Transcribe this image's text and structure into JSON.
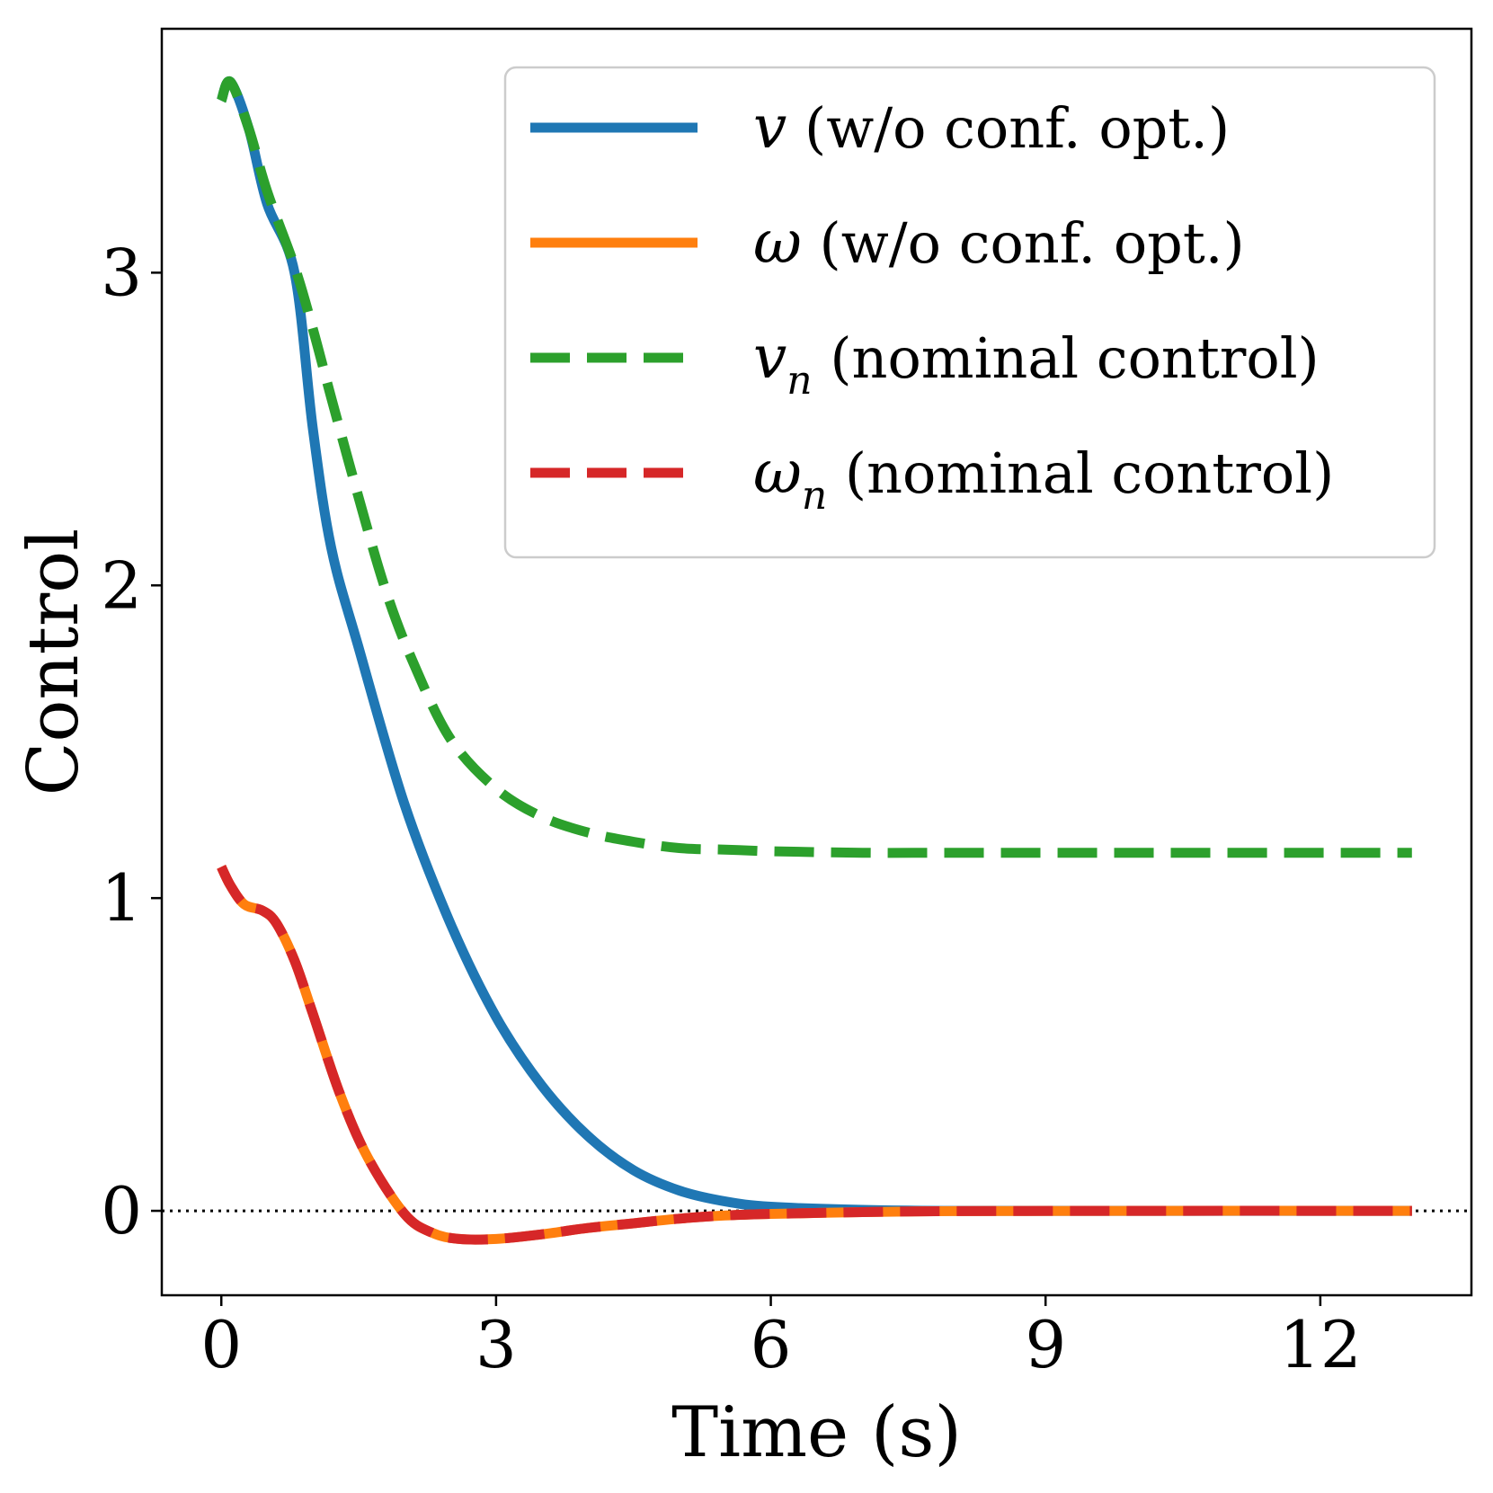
{
  "chart_data": {
    "type": "line",
    "title": "",
    "xlabel": "Time (s)",
    "ylabel": "Control",
    "xlim": [
      -0.65,
      13.65
    ],
    "ylim": [
      -0.27,
      3.78
    ],
    "xticks": [
      0,
      3,
      6,
      9,
      12
    ],
    "xtick_labels": [
      "0",
      "3",
      "6",
      "9",
      "12"
    ],
    "yticks": [
      0,
      1,
      2,
      3
    ],
    "ytick_labels": [
      "0",
      "1",
      "2",
      "3"
    ],
    "grid": false,
    "legend_position": "top-right",
    "reference_line": {
      "y": 0,
      "style": "dotted",
      "color": "#000000"
    },
    "series": [
      {
        "name": "v (w/o conf. opt.)",
        "symbol": "v",
        "subscript": "",
        "text": " (w/o conf. opt.)",
        "color": "#1f77b4",
        "style": "solid",
        "x": [
          0,
          0.1,
          0.3,
          0.5,
          0.8,
          1.0,
          1.2,
          1.5,
          2.0,
          2.5,
          3.0,
          3.5,
          4.0,
          4.5,
          5.0,
          5.5,
          6.0,
          7.0,
          8.0,
          10.0,
          13.0
        ],
        "y": [
          3.55,
          3.61,
          3.46,
          3.22,
          3.0,
          2.5,
          2.12,
          1.8,
          1.3,
          0.92,
          0.62,
          0.4,
          0.24,
          0.13,
          0.065,
          0.03,
          0.013,
          0.003,
          0.0,
          0.0,
          0.0
        ]
      },
      {
        "name": "ω (w/o conf. opt.)",
        "symbol": "ω",
        "subscript": "",
        "text": " (w/o conf. opt.)",
        "color": "#ff7f0e",
        "style": "solid",
        "x": [
          0,
          0.1,
          0.25,
          0.45,
          0.6,
          0.8,
          1.0,
          1.3,
          1.6,
          2.0,
          2.3,
          2.6,
          3.0,
          3.5,
          4.0,
          4.5,
          5.0,
          5.5,
          6.0,
          7.0,
          8.0,
          10.0,
          13.0
        ],
        "y": [
          1.1,
          1.04,
          0.98,
          0.96,
          0.92,
          0.8,
          0.63,
          0.37,
          0.17,
          -0.01,
          -0.07,
          -0.09,
          -0.09,
          -0.075,
          -0.055,
          -0.04,
          -0.025,
          -0.015,
          -0.01,
          -0.004,
          -0.001,
          0.0,
          0.0
        ]
      },
      {
        "name": "v_n (nominal control)",
        "symbol": "v",
        "subscript": "n",
        "text": " (nominal control)",
        "color": "#2ca02c",
        "style": "dashed",
        "x": [
          0,
          0.1,
          0.3,
          0.5,
          0.8,
          1.0,
          1.2,
          1.5,
          1.8,
          2.1,
          2.5,
          3.0,
          3.5,
          4.0,
          4.5,
          5.0,
          5.5,
          6.0,
          7.0,
          8.0,
          10.0,
          13.0
        ],
        "y": [
          3.55,
          3.61,
          3.46,
          3.26,
          3.02,
          2.82,
          2.6,
          2.28,
          1.98,
          1.75,
          1.51,
          1.35,
          1.26,
          1.21,
          1.18,
          1.16,
          1.155,
          1.15,
          1.145,
          1.145,
          1.145,
          1.145
        ]
      },
      {
        "name": "ω_n (nominal control)",
        "symbol": "ω",
        "subscript": "n",
        "text": " (nominal control)",
        "color": "#d62728",
        "style": "dashed",
        "x": [
          0,
          0.1,
          0.25,
          0.45,
          0.6,
          0.8,
          1.0,
          1.3,
          1.6,
          2.0,
          2.3,
          2.6,
          3.0,
          3.5,
          4.0,
          4.5,
          5.0,
          5.5,
          6.0,
          7.0,
          8.0,
          10.0,
          13.0
        ],
        "y": [
          1.1,
          1.04,
          0.98,
          0.96,
          0.92,
          0.8,
          0.63,
          0.37,
          0.17,
          -0.01,
          -0.07,
          -0.09,
          -0.09,
          -0.075,
          -0.055,
          -0.04,
          -0.025,
          -0.015,
          -0.01,
          -0.004,
          -0.001,
          0.0,
          0.0
        ]
      }
    ]
  }
}
